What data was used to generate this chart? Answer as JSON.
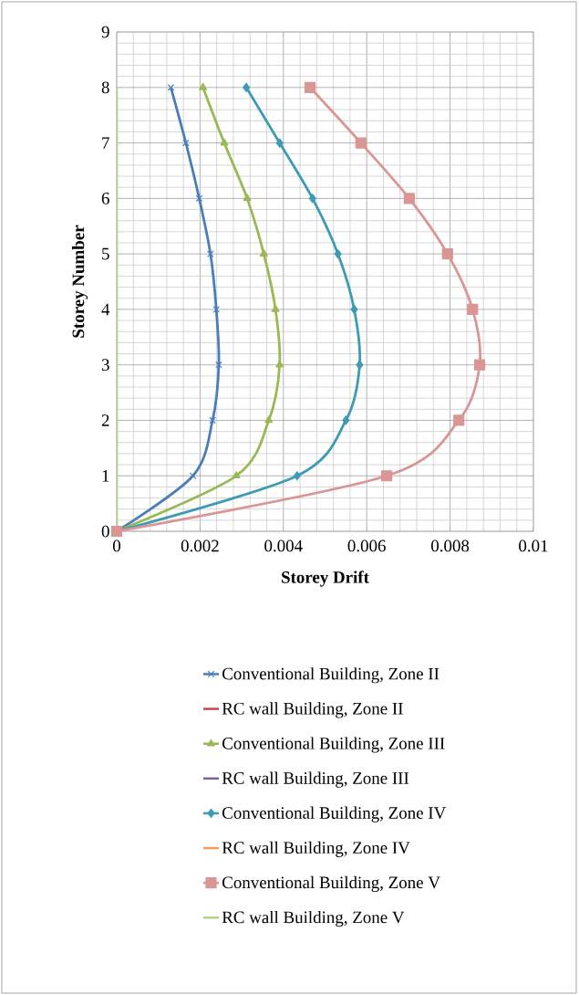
{
  "chart_data": {
    "type": "line",
    "xlabel": "Storey Drift",
    "ylabel": "Storey Number",
    "xlim": [
      0,
      0.01
    ],
    "xticks": [
      0,
      0.002,
      0.004,
      0.006,
      0.008,
      0.01
    ],
    "ylim": [
      0,
      9
    ],
    "yticks": [
      0,
      1,
      2,
      3,
      4,
      5,
      6,
      7,
      8,
      9
    ],
    "grid": true,
    "legend": "bottom",
    "series": [
      {
        "name": "Conventional Building, Zone II",
        "color": "#4a7ebb",
        "marker": "cross",
        "x": [
          0,
          0.00183,
          0.0023,
          0.00245,
          0.00239,
          0.00225,
          0.00198,
          0.00166,
          0.0013
        ],
        "values": [
          0,
          1,
          2,
          3,
          4,
          5,
          6,
          7,
          8
        ]
      },
      {
        "name": "RC wall Building, Zone II",
        "color": "#be4b48",
        "marker": "none",
        "x": [
          null,
          null,
          null,
          null,
          null,
          null,
          null,
          null,
          null
        ],
        "values": [
          null,
          null,
          null,
          null,
          null,
          null,
          null,
          null,
          null
        ]
      },
      {
        "name": "Conventional Building, Zone III",
        "color": "#98b954",
        "marker": "triangle",
        "x": [
          0,
          0.00287,
          0.00365,
          0.00391,
          0.00381,
          0.00353,
          0.00313,
          0.00258,
          0.00207
        ],
        "values": [
          0,
          1,
          2,
          3,
          4,
          5,
          6,
          7,
          8
        ]
      },
      {
        "name": "RC wall Building, Zone III",
        "color": "#7d60a0",
        "marker": "none",
        "x": [
          null,
          null,
          null,
          null,
          null,
          null,
          null,
          null,
          null
        ],
        "values": [
          null,
          null,
          null,
          null,
          null,
          null,
          null,
          null,
          null
        ]
      },
      {
        "name": "Conventional Building, Zone IV",
        "color": "#3d9bb4",
        "marker": "diamond",
        "x": [
          0,
          0.00433,
          0.0055,
          0.00583,
          0.0057,
          0.00531,
          0.0047,
          0.00391,
          0.00311
        ],
        "values": [
          0,
          1,
          2,
          3,
          4,
          5,
          6,
          7,
          8
        ]
      },
      {
        "name": "RC wall Building, Zone IV",
        "color": "#f59d56",
        "marker": "none",
        "x": [
          null,
          null,
          null,
          null,
          null,
          null,
          null,
          null,
          null
        ],
        "values": [
          null,
          null,
          null,
          null,
          null,
          null,
          null,
          null,
          null
        ]
      },
      {
        "name": "Conventional Building, Zone V",
        "color": "#d99694",
        "marker": "square",
        "x": [
          0,
          0.00648,
          0.00821,
          0.00871,
          0.00854,
          0.00794,
          0.00702,
          0.00586,
          0.00464
        ],
        "values": [
          0,
          1,
          2,
          3,
          4,
          5,
          6,
          7,
          8
        ]
      },
      {
        "name": "RC wall Building, Zone V",
        "color": "#b7d18f",
        "marker": "none",
        "x": [
          0,
          0,
          0,
          0,
          0,
          0,
          0,
          0,
          0
        ],
        "values": [
          0,
          1,
          2,
          3,
          4,
          5,
          6,
          7,
          8
        ]
      }
    ]
  }
}
